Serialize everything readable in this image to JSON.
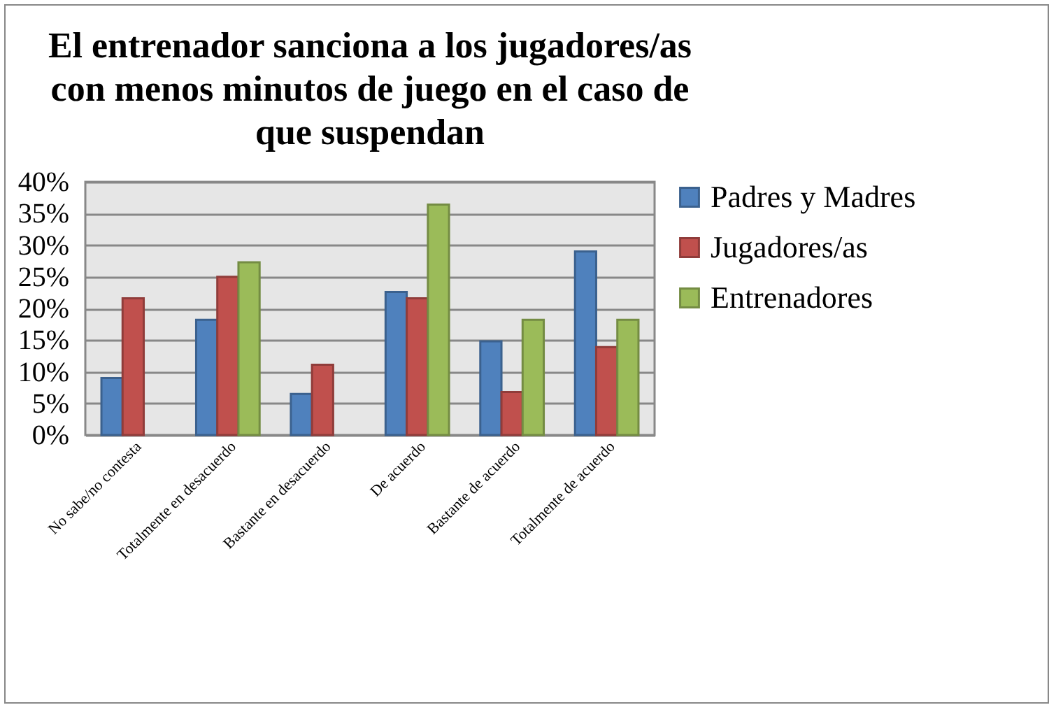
{
  "chart_data": {
    "type": "bar",
    "title": "El entrenador sanciona a los jugadores/as con menos minutos de juego en el caso de que suspendan",
    "categories": [
      "No sabe/no contesta",
      "Totalmente en desacuerdo",
      "Bastante en desacuerdo",
      "De acuerdo",
      "Bastante de acuerdo",
      "Totalmente de acuerdo"
    ],
    "series": [
      {
        "name": "Padres y Madres",
        "color": "#4f81bd",
        "values": [
          9,
          18.2,
          6.5,
          22.6,
          14.8,
          29
        ]
      },
      {
        "name": "Jugadores/as",
        "color": "#c0504d",
        "values": [
          21.6,
          25,
          11.1,
          21.6,
          6.8,
          13.9
        ]
      },
      {
        "name": "Entrenadores",
        "color": "#9bbb59",
        "values": [
          null,
          27.3,
          null,
          36.4,
          18.2,
          18.2
        ]
      }
    ],
    "ylim": [
      0,
      40
    ],
    "yticks": [
      {
        "value": 0,
        "label": "0%"
      },
      {
        "value": 5,
        "label": "5%"
      },
      {
        "value": 10,
        "label": "10%"
      },
      {
        "value": 15,
        "label": "15%"
      },
      {
        "value": 20,
        "label": "20%"
      },
      {
        "value": 25,
        "label": "25%"
      },
      {
        "value": 30,
        "label": "30%"
      },
      {
        "value": 35,
        "label": "35%"
      },
      {
        "value": 40,
        "label": "40%"
      }
    ],
    "grid": "y",
    "legend": "right"
  }
}
